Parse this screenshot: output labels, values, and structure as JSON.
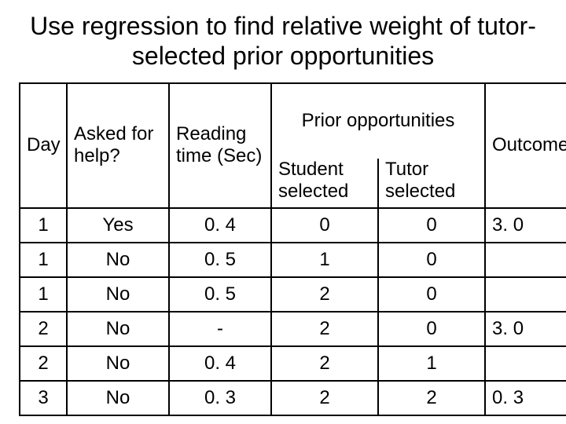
{
  "title": "Use regression to find relative weight of tutor-selected prior opportunities",
  "headers": {
    "day": "Day",
    "asked": "Asked for help?",
    "reading": "Reading time (Sec)",
    "prior": "Prior opportunities",
    "student": "Student selected",
    "tutor": "Tutor selected",
    "outcome": "Outcome"
  },
  "rows": [
    {
      "day": "1",
      "asked": "Yes",
      "reading": "0. 4",
      "student": "0",
      "tutor": "0",
      "outcome": "3. 0"
    },
    {
      "day": "1",
      "asked": "No",
      "reading": "0. 5",
      "student": "1",
      "tutor": "0",
      "outcome": ""
    },
    {
      "day": "1",
      "asked": "No",
      "reading": "0. 5",
      "student": "2",
      "tutor": "0",
      "outcome": ""
    },
    {
      "day": "2",
      "asked": "No",
      "reading": "-",
      "student": "2",
      "tutor": "0",
      "outcome": "3. 0"
    },
    {
      "day": "2",
      "asked": "No",
      "reading": "0. 4",
      "student": "2",
      "tutor": "1",
      "outcome": ""
    },
    {
      "day": "3",
      "asked": "No",
      "reading": "0. 3",
      "student": "2",
      "tutor": "2",
      "outcome": "0. 3"
    }
  ],
  "style": {
    "title_fontsize": 32,
    "cell_fontsize": 24,
    "border_color": "#000000",
    "background_color": "#ffffff",
    "text_color": "#000000",
    "column_widths": {
      "day": 60,
      "asked": 130,
      "reading": 130,
      "student": 136,
      "tutor": 136,
      "outcome": 110
    }
  }
}
